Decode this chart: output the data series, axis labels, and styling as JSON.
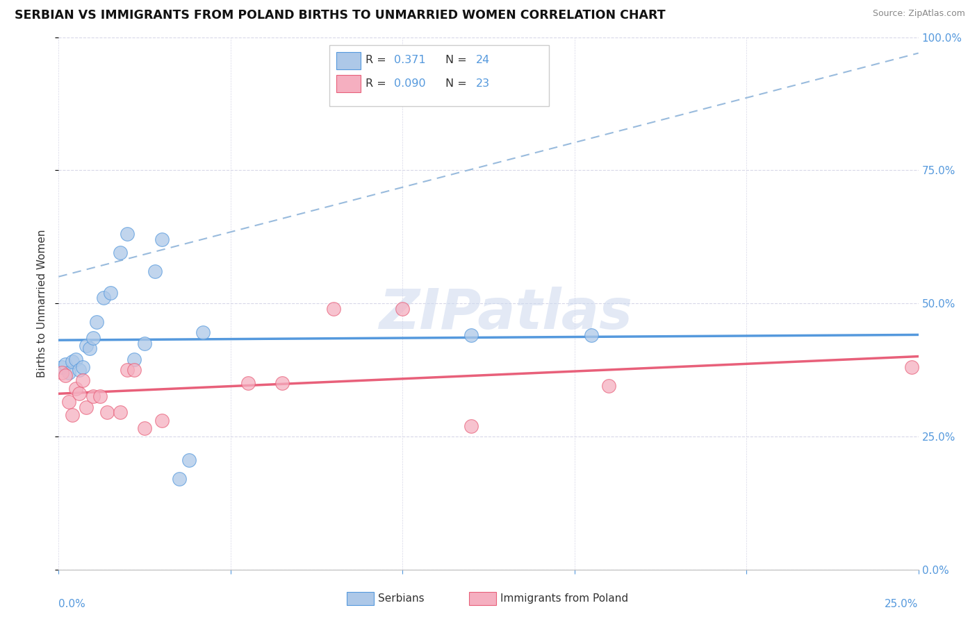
{
  "title": "SERBIAN VS IMMIGRANTS FROM POLAND BIRTHS TO UNMARRIED WOMEN CORRELATION CHART",
  "source": "Source: ZipAtlas.com",
  "ylabel": "Births to Unmarried Women",
  "R_serbian": 0.371,
  "N_serbian": 24,
  "R_poland": 0.09,
  "N_poland": 23,
  "serbian_x": [
    0.001,
    0.002,
    0.003,
    0.004,
    0.005,
    0.006,
    0.007,
    0.008,
    0.009,
    0.01,
    0.011,
    0.013,
    0.015,
    0.018,
    0.02,
    0.022,
    0.025,
    0.028,
    0.03,
    0.035,
    0.038,
    0.042,
    0.12,
    0.155
  ],
  "serbian_y": [
    0.38,
    0.385,
    0.37,
    0.39,
    0.395,
    0.375,
    0.38,
    0.42,
    0.415,
    0.435,
    0.465,
    0.51,
    0.52,
    0.595,
    0.63,
    0.395,
    0.425,
    0.56,
    0.62,
    0.17,
    0.205,
    0.445,
    0.44,
    0.44
  ],
  "poland_x": [
    0.001,
    0.002,
    0.003,
    0.004,
    0.005,
    0.006,
    0.007,
    0.008,
    0.01,
    0.012,
    0.014,
    0.018,
    0.02,
    0.022,
    0.025,
    0.03,
    0.055,
    0.065,
    0.08,
    0.1,
    0.12,
    0.16,
    0.248
  ],
  "poland_y": [
    0.37,
    0.365,
    0.315,
    0.29,
    0.34,
    0.33,
    0.355,
    0.305,
    0.325,
    0.325,
    0.295,
    0.295,
    0.375,
    0.375,
    0.265,
    0.28,
    0.35,
    0.35,
    0.49,
    0.49,
    0.27,
    0.345,
    0.38
  ],
  "serbian_color": "#adc8e8",
  "poland_color": "#f5afc0",
  "serbian_line_color": "#5599dd",
  "poland_line_color": "#e8607a",
  "diagonal_color": "#99bbdd",
  "background_color": "#ffffff",
  "grid_color": "#d8d8e8",
  "watermark": "ZIPatlas",
  "xlim": [
    0.0,
    0.25
  ],
  "ylim": [
    0.0,
    1.0
  ]
}
